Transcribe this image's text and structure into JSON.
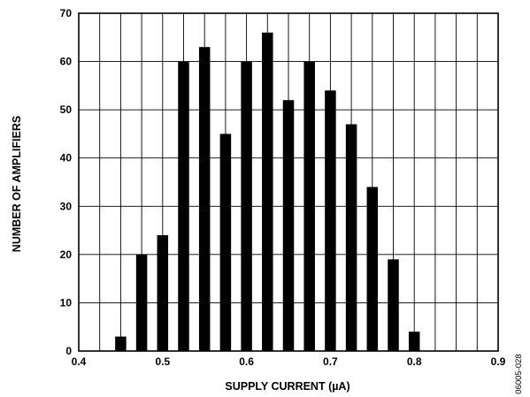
{
  "chart_data": {
    "type": "bar",
    "title": "",
    "xlabel": "SUPPLY CURRENT (µA)",
    "ylabel": "NUMBER OF AMPLIFIERS",
    "xlim": [
      0.4,
      0.9
    ],
    "ylim": [
      0,
      70
    ],
    "x_ticks": [
      "0.4",
      "0.5",
      "0.6",
      "0.7",
      "0.8",
      "0.9"
    ],
    "y_ticks": [
      "0",
      "10",
      "20",
      "30",
      "40",
      "50",
      "60",
      "70"
    ],
    "grid": true,
    "x": [
      0.45,
      0.475,
      0.5,
      0.525,
      0.55,
      0.575,
      0.6,
      0.625,
      0.65,
      0.675,
      0.7,
      0.725,
      0.75,
      0.775,
      0.8
    ],
    "values": [
      3,
      20,
      24,
      60,
      63,
      45,
      60,
      66,
      52,
      60,
      54,
      47,
      34,
      19,
      4
    ]
  },
  "figure_code": "06005-028",
  "colors": {
    "bar": "#000000",
    "grid": "#000000",
    "background": "#ffffff"
  }
}
